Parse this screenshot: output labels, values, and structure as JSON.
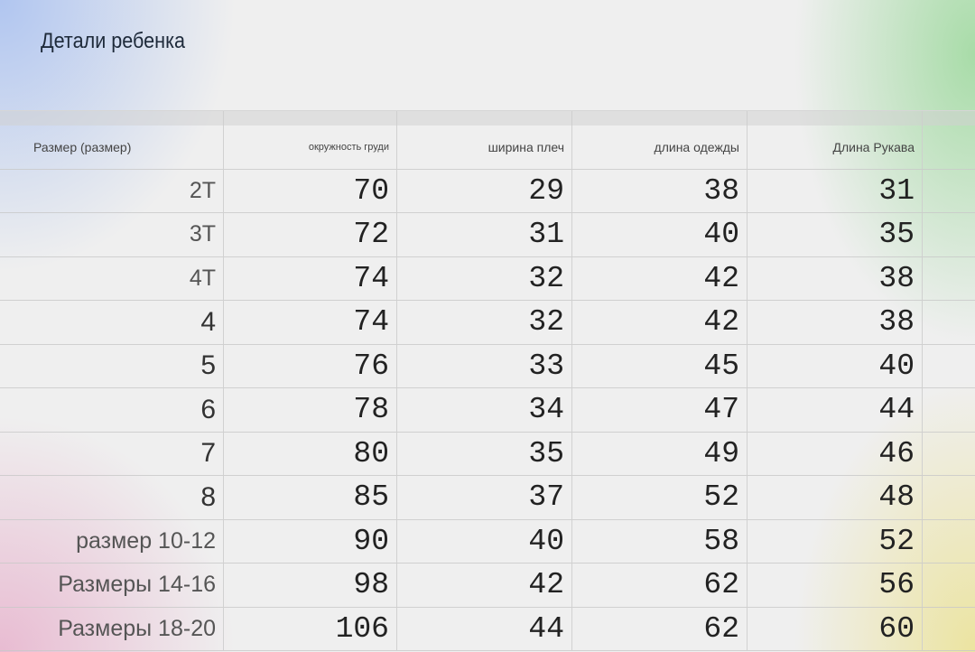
{
  "title": "Детали ребенка",
  "headers": [
    "Размер (размер)",
    "окружность груди",
    "ширина плеч",
    "длина одежды",
    "Длина Рукава"
  ],
  "rows": [
    {
      "size": "2T",
      "values": [
        "70",
        "29",
        "38",
        "31"
      ]
    },
    {
      "size": "3T",
      "values": [
        "72",
        "31",
        "40",
        "35"
      ]
    },
    {
      "size": "4T",
      "values": [
        "74",
        "32",
        "42",
        "38"
      ]
    },
    {
      "size": "4",
      "values": [
        "74",
        "32",
        "42",
        "38"
      ]
    },
    {
      "size": "5",
      "values": [
        "76",
        "33",
        "45",
        "40"
      ]
    },
    {
      "size": "6",
      "values": [
        "78",
        "34",
        "47",
        "44"
      ]
    },
    {
      "size": "7",
      "values": [
        "80",
        "35",
        "49",
        "46"
      ]
    },
    {
      "size": "8",
      "values": [
        "85",
        "37",
        "52",
        "48"
      ]
    },
    {
      "size": "размер 10-12",
      "values": [
        "90",
        "40",
        "58",
        "52"
      ]
    },
    {
      "size": "Размеры 14-16",
      "values": [
        "98",
        "42",
        "62",
        "56"
      ]
    },
    {
      "size": "Размеры 18-20",
      "values": [
        "106",
        "44",
        "62",
        "60"
      ]
    }
  ]
}
